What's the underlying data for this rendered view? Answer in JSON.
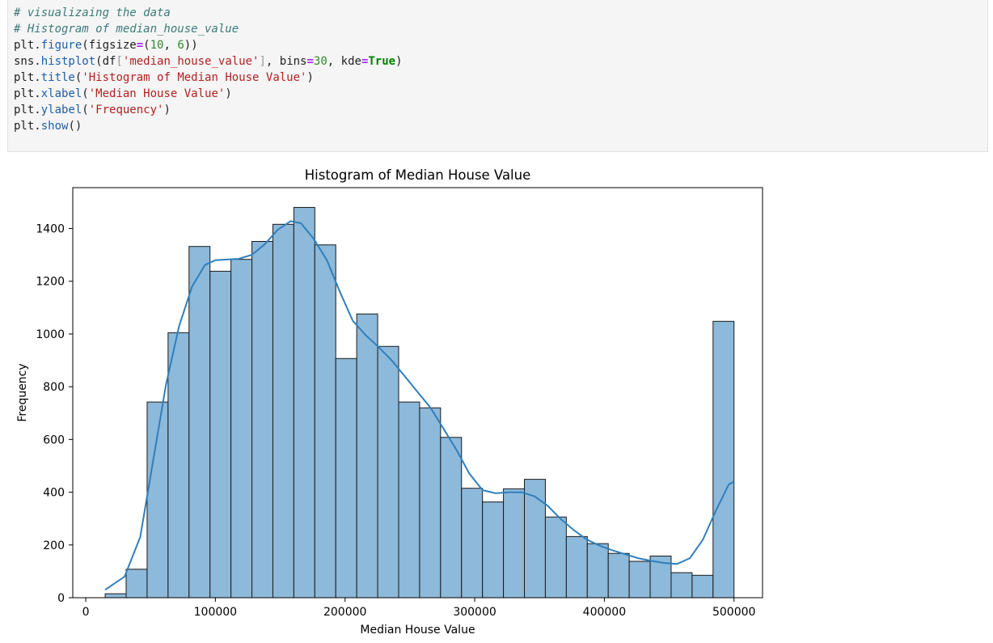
{
  "code_cell": {
    "lines": [
      [
        {
          "t": "# visualizaing the data",
          "c": "cm"
        }
      ],
      [
        {
          "t": "# Histogram of median_house_value",
          "c": "cm"
        }
      ],
      [
        {
          "t": "plt.",
          "c": ""
        },
        {
          "t": "figure",
          "c": "fn"
        },
        {
          "t": "(figsize",
          "c": ""
        },
        {
          "t": "=",
          "c": "op"
        },
        {
          "t": "(",
          "c": ""
        },
        {
          "t": "10",
          "c": "nm"
        },
        {
          "t": ", ",
          "c": ""
        },
        {
          "t": "6",
          "c": "nm"
        },
        {
          "t": "))",
          "c": ""
        }
      ],
      [
        {
          "t": "sns.",
          "c": ""
        },
        {
          "t": "histplot",
          "c": "fn"
        },
        {
          "t": "(df",
          "c": ""
        },
        {
          "t": "[",
          "c": "br"
        },
        {
          "t": "'median_house_value'",
          "c": "st"
        },
        {
          "t": "]",
          "c": "br"
        },
        {
          "t": ", bins",
          "c": ""
        },
        {
          "t": "=",
          "c": "op"
        },
        {
          "t": "30",
          "c": "nm"
        },
        {
          "t": ", kde",
          "c": ""
        },
        {
          "t": "=",
          "c": "op"
        },
        {
          "t": "True",
          "c": "kw"
        },
        {
          "t": ")",
          "c": ""
        }
      ],
      [
        {
          "t": "plt.",
          "c": ""
        },
        {
          "t": "title",
          "c": "fn"
        },
        {
          "t": "(",
          "c": ""
        },
        {
          "t": "'Histogram of Median House Value'",
          "c": "st"
        },
        {
          "t": ")",
          "c": ""
        }
      ],
      [
        {
          "t": "plt.",
          "c": ""
        },
        {
          "t": "xlabel",
          "c": "fn"
        },
        {
          "t": "(",
          "c": ""
        },
        {
          "t": "'Median House Value'",
          "c": "st"
        },
        {
          "t": ")",
          "c": ""
        }
      ],
      [
        {
          "t": "plt.",
          "c": ""
        },
        {
          "t": "ylabel",
          "c": "fn"
        },
        {
          "t": "(",
          "c": ""
        },
        {
          "t": "'Frequency'",
          "c": "st"
        },
        {
          "t": ")",
          "c": ""
        }
      ],
      [
        {
          "t": "plt.",
          "c": ""
        },
        {
          "t": "show",
          "c": "fn"
        },
        {
          "t": "()",
          "c": ""
        }
      ]
    ]
  },
  "chart_data": {
    "type": "bar",
    "title": "Histogram of Median House Value",
    "xlabel": "Median House Value",
    "ylabel": "Frequency",
    "xlim": [
      -10000,
      522000
    ],
    "ylim": [
      0,
      1555
    ],
    "xticks": [
      0,
      100000,
      200000,
      300000,
      400000,
      500000
    ],
    "yticks": [
      0,
      200,
      400,
      600,
      800,
      1000,
      1200,
      1400
    ],
    "bin_start": 14999,
    "bin_width": 16166.7,
    "values": [
      15,
      108,
      742,
      1005,
      1332,
      1238,
      1283,
      1351,
      1416,
      1480,
      1338,
      907,
      1076,
      953,
      742,
      720,
      608,
      415,
      363,
      413,
      449,
      306,
      232,
      205,
      168,
      138,
      158,
      95,
      85,
      1048
    ],
    "kde": [
      [
        14999,
        30
      ],
      [
        30000,
        80
      ],
      [
        42000,
        230
      ],
      [
        52000,
        520
      ],
      [
        62000,
        810
      ],
      [
        72000,
        1030
      ],
      [
        82000,
        1180
      ],
      [
        92000,
        1262
      ],
      [
        100000,
        1280
      ],
      [
        110000,
        1283
      ],
      [
        118000,
        1285
      ],
      [
        128000,
        1300
      ],
      [
        138000,
        1340
      ],
      [
        148000,
        1395
      ],
      [
        158000,
        1428
      ],
      [
        166000,
        1420
      ],
      [
        176000,
        1360
      ],
      [
        186000,
        1280
      ],
      [
        196000,
        1160
      ],
      [
        206000,
        1050
      ],
      [
        216000,
        995
      ],
      [
        226000,
        950
      ],
      [
        236000,
        900
      ],
      [
        246000,
        840
      ],
      [
        256000,
        780
      ],
      [
        266000,
        720
      ],
      [
        276000,
        640
      ],
      [
        286000,
        560
      ],
      [
        296000,
        470
      ],
      [
        306000,
        408
      ],
      [
        316000,
        396
      ],
      [
        326000,
        400
      ],
      [
        336000,
        400
      ],
      [
        346000,
        385
      ],
      [
        356000,
        350
      ],
      [
        366000,
        300
      ],
      [
        376000,
        258
      ],
      [
        386000,
        222
      ],
      [
        396000,
        198
      ],
      [
        406000,
        180
      ],
      [
        416000,
        165
      ],
      [
        426000,
        150
      ],
      [
        436000,
        140
      ],
      [
        446000,
        132
      ],
      [
        456000,
        128
      ],
      [
        466000,
        150
      ],
      [
        476000,
        220
      ],
      [
        486000,
        330
      ],
      [
        496000,
        430
      ],
      [
        500001,
        440
      ]
    ],
    "bar_color": "#8db9da",
    "edge_color": "#1a1a1a",
    "kde_color": "#2f7fbd",
    "grid": false,
    "legend": "none"
  }
}
